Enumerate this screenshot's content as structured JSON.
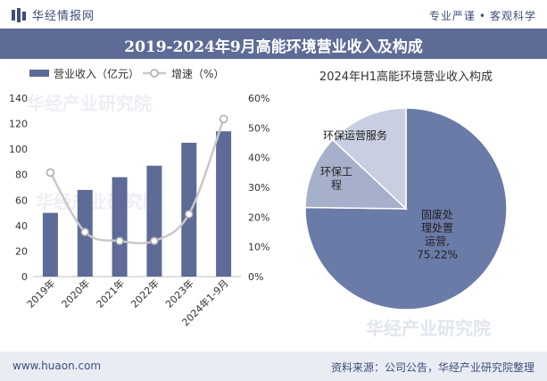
{
  "header": {
    "logo_text": "华经情报网",
    "slogan_left": "专业严谨",
    "slogan_right": "客观科学"
  },
  "title": "2019-2024年9月高能环境营业收入及构成",
  "footer": {
    "site": "www.huaon.com",
    "source": "资料来源：公司公告，华经产业研究院整理"
  },
  "watermarks": [
    "华经产业研究院",
    "www.huaon.com"
  ],
  "colors": {
    "bar": "#5d6b96",
    "line": "#c8c8c8",
    "title_bg": "#5d6b96",
    "pie_main": "#6b7ba8",
    "pie_second": "#a6b0cb",
    "pie_third": "#c9cfe0"
  },
  "chart_data": [
    {
      "type": "bar",
      "categories": [
        "2019年",
        "2020年",
        "2021年",
        "2022年",
        "2023年",
        "2024年1-9月"
      ],
      "series": [
        {
          "name": "营业收入（亿元）",
          "type": "bar",
          "axis": "left",
          "values": [
            50,
            68,
            78,
            87,
            105,
            114
          ]
        },
        {
          "name": "增速（%）",
          "type": "line",
          "axis": "right",
          "values": [
            35,
            15,
            12,
            12,
            21,
            53
          ]
        }
      ],
      "ylim": [
        0,
        140
      ],
      "yticks": [
        0,
        20,
        40,
        60,
        80,
        100,
        120,
        140
      ],
      "y2lim": [
        0,
        60
      ],
      "y2ticks": [
        "0%",
        "10%",
        "20%",
        "30%",
        "40%",
        "50%",
        "60%"
      ],
      "legend_position": "top-left"
    },
    {
      "type": "pie",
      "title": "2024年H1高能环境营业收入构成",
      "slices": [
        {
          "label_lines": [
            "固废处",
            "理处置",
            "运营,",
            "75.22%"
          ],
          "value": 75.22
        },
        {
          "label_lines": [
            "环保工",
            "程"
          ],
          "value": 11.8
        },
        {
          "label_lines": [
            "环保运营服务"
          ],
          "value": 12.98
        }
      ]
    }
  ]
}
